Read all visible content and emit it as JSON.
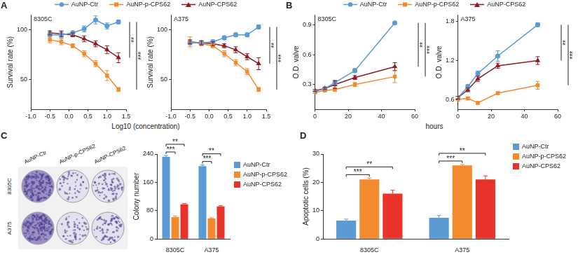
{
  "chart_data": [
    {
      "type": "line",
      "panel": "A",
      "title": "8305C",
      "x_label": "Log10 (concentration)",
      "y_label": "Survival rate (%)",
      "legend": "top",
      "grid": false,
      "x": [
        -0.5,
        -0.2,
        0.1,
        0.4,
        0.7,
        1.0,
        1.3
      ],
      "xlim": [
        -1.0,
        1.5
      ],
      "xticks": [
        {
          "value": -1,
          "label": "-1.0"
        },
        {
          "value": -0.5,
          "label": "-0.5"
        },
        {
          "value": 0,
          "label": "0.0"
        },
        {
          "value": 0.5,
          "label": "0.5"
        },
        {
          "value": 1,
          "label": "1.0"
        },
        {
          "value": 1.5,
          "label": "1.5"
        }
      ],
      "ylim": [
        20,
        115
      ],
      "yticks": [
        50,
        100
      ],
      "series": [
        {
          "name": "AuNP-Ctr",
          "color": "#5b9bd5",
          "marker": "circle",
          "values": [
            95,
            95,
            97,
            101,
            110,
            104,
            108
          ],
          "errors": [
            3,
            3,
            2,
            3,
            4,
            3,
            2
          ]
        },
        {
          "name": "AuNP-p-CPS62",
          "color": "#f28a2e",
          "marker": "rect",
          "values": [
            90,
            88,
            84,
            76,
            66,
            54,
            40
          ],
          "errors": [
            3,
            3,
            2,
            3,
            3,
            5,
            2
          ]
        },
        {
          "name": "AuNP-CPS62",
          "color": "#8b1e24",
          "marker": "triangle",
          "values": [
            97,
            96,
            95,
            91,
            86,
            80,
            72
          ],
          "errors": [
            2,
            3,
            2,
            3,
            3,
            4,
            5
          ]
        }
      ],
      "annotations": [
        {
          "text": "**",
          "series": [
            "AuNP-CPS62",
            "AuNP-Ctr"
          ]
        },
        {
          "text": "***",
          "series": [
            "AuNP-p-CPS62",
            "AuNP-Ctr"
          ]
        }
      ]
    },
    {
      "type": "line",
      "title": "A375",
      "y_label": "Survival rate (%)",
      "grid": false,
      "x": [
        -0.5,
        -0.2,
        0.1,
        0.4,
        0.7,
        1.0,
        1.3
      ],
      "xlim": [
        -1.0,
        1.5
      ],
      "xticks": [
        {
          "value": -1,
          "label": "-1.0"
        },
        {
          "value": -0.5,
          "label": "-0.5"
        },
        {
          "value": 0,
          "label": "0.0"
        },
        {
          "value": 0.5,
          "label": "0.5"
        },
        {
          "value": 1,
          "label": "1.0"
        },
        {
          "value": 1.5,
          "label": "1.5"
        }
      ],
      "ylim": [
        20,
        115
      ],
      "yticks": [
        50,
        100
      ],
      "series": [
        {
          "name": "AuNP-Ctr",
          "color": "#5b9bd5",
          "marker": "circle",
          "values": [
            87,
            87,
            88,
            92,
            95,
            95,
            103
          ],
          "errors": [
            2,
            2,
            2,
            2,
            2,
            2,
            2
          ]
        },
        {
          "name": "AuNP-p-CPS62",
          "color": "#f28a2e",
          "marker": "rect",
          "values": [
            88,
            86,
            84,
            76,
            67,
            58,
            40
          ],
          "errors": [
            5,
            2,
            2,
            3,
            3,
            3,
            2
          ]
        },
        {
          "name": "AuNP-CPS62",
          "color": "#8b1e24",
          "marker": "triangle",
          "values": [
            88,
            87,
            86,
            84,
            80,
            73,
            66
          ],
          "errors": [
            2,
            2,
            2,
            2,
            3,
            3,
            6
          ]
        }
      ],
      "annotations": [
        {
          "text": "**",
          "series": [
            "AuNP-CPS62",
            "AuNP-Ctr"
          ]
        },
        {
          "text": "***",
          "series": [
            "AuNP-p-CPS62",
            "AuNP-Ctr"
          ]
        }
      ]
    },
    {
      "type": "line",
      "panel": "B",
      "title": "8305C",
      "x_label": "hours",
      "y_label": "O.D. valve",
      "legend": "top",
      "grid": false,
      "x": [
        0,
        6,
        12,
        24,
        48
      ],
      "xlim": [
        0,
        60
      ],
      "xticks": [
        0,
        20,
        40,
        60
      ],
      "ylim": [
        0.05,
        1.0
      ],
      "yticks": [
        0.3,
        0.6,
        0.9
      ],
      "series": [
        {
          "name": "AuNP-Ctr",
          "color": "#5b9bd5",
          "marker": "circle",
          "values": [
            0.23,
            0.26,
            0.32,
            0.44,
            0.92
          ],
          "errors": [
            0.01,
            0.01,
            0.02,
            0.02,
            0.01
          ]
        },
        {
          "name": "AuNP-p-CPS62",
          "color": "#f28a2e",
          "marker": "rect",
          "values": [
            0.22,
            0.24,
            0.25,
            0.3,
            0.38
          ],
          "errors": [
            0.01,
            0.01,
            0.02,
            0.02,
            0.06
          ]
        },
        {
          "name": "AuNP-CPS62",
          "color": "#8b1e24",
          "marker": "triangle",
          "values": [
            0.24,
            0.26,
            0.3,
            0.37,
            0.48
          ],
          "errors": [
            0.01,
            0.01,
            0.04,
            0.02,
            0.04
          ]
        }
      ],
      "annotations": [
        {
          "text": "**",
          "series": [
            "AuNP-CPS62",
            "AuNP-Ctr"
          ]
        },
        {
          "text": "***",
          "series": [
            "AuNP-p-CPS62",
            "AuNP-Ctr"
          ]
        }
      ]
    },
    {
      "type": "line",
      "title": "A375",
      "y_label": "O.D. valve",
      "grid": false,
      "x": [
        0,
        6,
        12,
        24,
        48
      ],
      "xlim": [
        0,
        60
      ],
      "xticks": [
        0,
        20,
        40,
        60
      ],
      "ylim": [
        0.45,
        1.9
      ],
      "yticks": [
        0.6,
        1.2,
        1.8
      ],
      "series": [
        {
          "name": "AuNP-Ctr",
          "color": "#5b9bd5",
          "marker": "circle",
          "values": [
            0.63,
            0.8,
            1.0,
            1.27,
            1.75
          ],
          "errors": [
            0.02,
            0.03,
            0.04,
            0.08,
            0.03
          ]
        },
        {
          "name": "AuNP-p-CPS62",
          "color": "#f28a2e",
          "marker": "rect",
          "values": [
            0.6,
            0.62,
            0.55,
            0.7,
            0.82
          ],
          "errors": [
            0.02,
            0.02,
            0.02,
            0.02,
            0.06
          ]
        },
        {
          "name": "AuNP-CPS62",
          "color": "#8b1e24",
          "marker": "triangle",
          "values": [
            0.63,
            0.75,
            0.92,
            1.12,
            1.2
          ],
          "errors": [
            0.02,
            0.03,
            0.04,
            0.04,
            0.06
          ]
        }
      ],
      "annotations": [
        {
          "text": "**",
          "series": [
            "AuNP-CPS62",
            "AuNP-Ctr"
          ]
        },
        {
          "text": "***",
          "series": [
            "AuNP-p-CPS62",
            "AuNP-Ctr"
          ]
        }
      ]
    },
    {
      "type": "bar",
      "panel": "C",
      "y_label": "Colony number",
      "legend": "right",
      "grid": false,
      "categories": [
        "8305C",
        "A375"
      ],
      "ylim": [
        0,
        240
      ],
      "yticks": [
        0,
        80,
        160,
        240
      ],
      "series": [
        {
          "name": "AuNP-Ctr",
          "color": "#5b9bd5",
          "values": [
            232,
            206
          ],
          "errors": [
            4,
            3
          ]
        },
        {
          "name": "AuNP-p-CPS62",
          "color": "#f28a2e",
          "values": [
            62,
            58
          ],
          "errors": [
            3,
            2
          ]
        },
        {
          "name": "AuNP-CPS62",
          "color": "#e8332a",
          "values": [
            98,
            92
          ],
          "errors": [
            2,
            2
          ]
        }
      ],
      "annotations": [
        {
          "text": "***",
          "category": "8305C",
          "series": [
            "AuNP-Ctr",
            "AuNP-p-CPS62"
          ]
        },
        {
          "text": "**",
          "category": "8305C",
          "series": [
            "AuNP-Ctr",
            "AuNP-CPS62"
          ]
        },
        {
          "text": "***",
          "category": "A375",
          "series": [
            "AuNP-Ctr",
            "AuNP-p-CPS62"
          ]
        },
        {
          "text": "**",
          "category": "A375",
          "series": [
            "AuNP-Ctr",
            "AuNP-CPS62"
          ]
        }
      ]
    },
    {
      "type": "bar",
      "panel": "D",
      "y_label": "Apoptotic cells (%)",
      "legend": "right",
      "grid": false,
      "categories": [
        "8305C",
        "A375"
      ],
      "ylim": [
        0,
        30
      ],
      "yticks": [
        0,
        10,
        20,
        30
      ],
      "series": [
        {
          "name": "AuNP-Ctr",
          "color": "#5b9bd5",
          "values": [
            6.5,
            7.5
          ],
          "errors": [
            0.5,
            0.8
          ]
        },
        {
          "name": "AuNP-p-CPS62",
          "color": "#f28a2e",
          "values": [
            21,
            26
          ],
          "errors": [
            0.5,
            0.3
          ]
        },
        {
          "name": "AuNP-CPS62",
          "color": "#e8332a",
          "values": [
            16,
            21
          ],
          "errors": [
            1.2,
            1.3
          ]
        }
      ],
      "annotations": [
        {
          "text": "***",
          "category": "8305C",
          "series": [
            "AuNP-Ctr",
            "AuNP-p-CPS62"
          ]
        },
        {
          "text": "**",
          "category": "8305C",
          "series": [
            "AuNP-Ctr",
            "AuNP-CPS62"
          ]
        },
        {
          "text": "***",
          "category": "A375",
          "series": [
            "AuNP-Ctr",
            "AuNP-p-CPS62"
          ]
        },
        {
          "text": "**",
          "category": "A375",
          "series": [
            "AuNP-Ctr",
            "AuNP-CPS62"
          ]
        }
      ]
    }
  ],
  "colony_plates": {
    "columns": [
      "AuNP-Ctr",
      "AuNP-p-CPS62",
      "AuNP-CPS62"
    ],
    "rows": [
      "8305C",
      "A375"
    ]
  }
}
